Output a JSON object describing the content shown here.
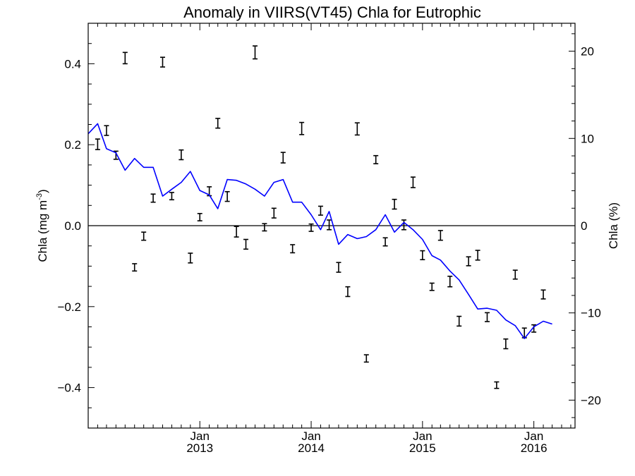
{
  "chart_data": {
    "type": "line",
    "title": "Anomaly in VIIRS(VT45) Chla for Eutrophic",
    "ylabel_left": "Chla (mg m",
    "ylabel_left_sup": "-3",
    "ylabel_left_close": ")",
    "ylabel_right": "Chla (%)",
    "ylim_left": [
      -0.5,
      0.5
    ],
    "ylim_right": [
      -23.2,
      23.2
    ],
    "xlim": [
      "2012-01-01",
      "2016-05-15"
    ],
    "grid": false,
    "zero_line": 0,
    "left_ticks": [
      {
        "value": 0.4,
        "label": "0.4"
      },
      {
        "value": 0.2,
        "label": "0.2"
      },
      {
        "value": 0.0,
        "label": "0.0"
      },
      {
        "value": -0.2,
        "label": "−0.2"
      },
      {
        "value": -0.4,
        "label": "−0.4"
      }
    ],
    "right_ticks": [
      {
        "value": 20,
        "label": "20"
      },
      {
        "value": 10,
        "label": "10"
      },
      {
        "value": 0,
        "label": "0"
      },
      {
        "value": -10,
        "label": "−10"
      },
      {
        "value": -20,
        "label": "−20"
      }
    ],
    "x_ticks": [
      {
        "date": "2013-01-01",
        "month": "Jan",
        "year": "2013"
      },
      {
        "date": "2014-01-01",
        "month": "Jan",
        "year": "2014"
      },
      {
        "date": "2015-01-01",
        "month": "Jan",
        "year": "2015"
      },
      {
        "date": "2016-01-01",
        "month": "Jan",
        "year": "2016"
      }
    ],
    "errorbars": {
      "color": "#000000",
      "points": [
        {
          "date": "2012-02-01",
          "y": 0.201,
          "err": 0.013
        },
        {
          "date": "2012-03-01",
          "y": 0.235,
          "err": 0.012
        },
        {
          "date": "2012-04-01",
          "y": 0.174,
          "err": 0.01
        },
        {
          "date": "2012-05-01",
          "y": 0.414,
          "err": 0.014
        },
        {
          "date": "2012-06-01",
          "y": -0.103,
          "err": 0.009
        },
        {
          "date": "2012-07-01",
          "y": -0.026,
          "err": 0.01
        },
        {
          "date": "2012-08-01",
          "y": 0.068,
          "err": 0.01
        },
        {
          "date": "2012-09-01",
          "y": 0.404,
          "err": 0.012
        },
        {
          "date": "2012-10-01",
          "y": 0.073,
          "err": 0.009
        },
        {
          "date": "2012-11-01",
          "y": 0.175,
          "err": 0.012
        },
        {
          "date": "2012-12-01",
          "y": -0.08,
          "err": 0.012
        },
        {
          "date": "2013-01-01",
          "y": 0.021,
          "err": 0.009
        },
        {
          "date": "2013-02-01",
          "y": 0.085,
          "err": 0.011
        },
        {
          "date": "2013-03-01",
          "y": 0.253,
          "err": 0.012
        },
        {
          "date": "2013-04-01",
          "y": 0.072,
          "err": 0.012
        },
        {
          "date": "2013-05-01",
          "y": -0.015,
          "err": 0.013
        },
        {
          "date": "2013-06-01",
          "y": -0.046,
          "err": 0.012
        },
        {
          "date": "2013-07-01",
          "y": 0.428,
          "err": 0.016
        },
        {
          "date": "2013-08-01",
          "y": -0.004,
          "err": 0.009
        },
        {
          "date": "2013-09-01",
          "y": 0.031,
          "err": 0.012
        },
        {
          "date": "2013-10-01",
          "y": 0.168,
          "err": 0.013
        },
        {
          "date": "2013-11-01",
          "y": -0.057,
          "err": 0.01
        },
        {
          "date": "2013-12-01",
          "y": 0.24,
          "err": 0.015
        },
        {
          "date": "2014-01-01",
          "y": -0.005,
          "err": 0.009
        },
        {
          "date": "2014-02-01",
          "y": 0.037,
          "err": 0.011
        },
        {
          "date": "2014-03-01",
          "y": 0.002,
          "err": 0.012
        },
        {
          "date": "2014-04-01",
          "y": -0.103,
          "err": 0.012
        },
        {
          "date": "2014-05-01",
          "y": -0.163,
          "err": 0.012
        },
        {
          "date": "2014-06-01",
          "y": 0.239,
          "err": 0.015
        },
        {
          "date": "2014-07-01",
          "y": -0.328,
          "err": 0.009
        },
        {
          "date": "2014-08-01",
          "y": 0.163,
          "err": 0.01
        },
        {
          "date": "2014-09-01",
          "y": -0.04,
          "err": 0.01
        },
        {
          "date": "2014-10-01",
          "y": 0.053,
          "err": 0.012
        },
        {
          "date": "2014-11-01",
          "y": 0.002,
          "err": 0.012
        },
        {
          "date": "2014-12-01",
          "y": 0.107,
          "err": 0.013
        },
        {
          "date": "2015-01-01",
          "y": -0.073,
          "err": 0.011
        },
        {
          "date": "2015-02-01",
          "y": -0.151,
          "err": 0.009
        },
        {
          "date": "2015-03-01",
          "y": -0.024,
          "err": 0.012
        },
        {
          "date": "2015-04-01",
          "y": -0.138,
          "err": 0.013
        },
        {
          "date": "2015-05-01",
          "y": -0.236,
          "err": 0.012
        },
        {
          "date": "2015-06-01",
          "y": -0.088,
          "err": 0.011
        },
        {
          "date": "2015-07-01",
          "y": -0.073,
          "err": 0.012
        },
        {
          "date": "2015-08-01",
          "y": -0.226,
          "err": 0.011
        },
        {
          "date": "2015-09-01",
          "y": -0.394,
          "err": 0.008
        },
        {
          "date": "2015-10-01",
          "y": -0.292,
          "err": 0.012
        },
        {
          "date": "2015-11-01",
          "y": -0.121,
          "err": 0.011
        },
        {
          "date": "2015-12-01",
          "y": -0.265,
          "err": 0.012
        },
        {
          "date": "2016-01-01",
          "y": -0.254,
          "err": 0.009
        },
        {
          "date": "2016-02-01",
          "y": -0.17,
          "err": 0.011
        }
      ]
    },
    "series": [
      {
        "color": "#0000ff",
        "points": [
          {
            "date": "2012-01-01",
            "y": 0.227
          },
          {
            "date": "2012-02-01",
            "y": 0.252
          },
          {
            "date": "2012-03-01",
            "y": 0.19
          },
          {
            "date": "2012-04-01",
            "y": 0.18
          },
          {
            "date": "2012-05-01",
            "y": 0.137
          },
          {
            "date": "2012-06-01",
            "y": 0.166
          },
          {
            "date": "2012-07-01",
            "y": 0.144
          },
          {
            "date": "2012-08-01",
            "y": 0.144
          },
          {
            "date": "2012-09-01",
            "y": 0.073
          },
          {
            "date": "2012-10-01",
            "y": 0.09
          },
          {
            "date": "2012-11-01",
            "y": 0.107
          },
          {
            "date": "2012-12-01",
            "y": 0.134
          },
          {
            "date": "2013-01-01",
            "y": 0.087
          },
          {
            "date": "2013-02-01",
            "y": 0.076
          },
          {
            "date": "2013-03-01",
            "y": 0.042
          },
          {
            "date": "2013-04-01",
            "y": 0.114
          },
          {
            "date": "2013-05-01",
            "y": 0.112
          },
          {
            "date": "2013-06-01",
            "y": 0.103
          },
          {
            "date": "2013-07-01",
            "y": 0.09
          },
          {
            "date": "2013-08-01",
            "y": 0.073
          },
          {
            "date": "2013-09-01",
            "y": 0.107
          },
          {
            "date": "2013-10-01",
            "y": 0.114
          },
          {
            "date": "2013-11-01",
            "y": 0.058
          },
          {
            "date": "2013-12-01",
            "y": 0.058
          },
          {
            "date": "2014-01-01",
            "y": 0.027
          },
          {
            "date": "2014-02-01",
            "y": -0.01
          },
          {
            "date": "2014-03-01",
            "y": 0.035
          },
          {
            "date": "2014-04-01",
            "y": -0.046
          },
          {
            "date": "2014-05-01",
            "y": -0.022
          },
          {
            "date": "2014-06-01",
            "y": -0.032
          },
          {
            "date": "2014-07-01",
            "y": -0.027
          },
          {
            "date": "2014-08-01",
            "y": -0.01
          },
          {
            "date": "2014-09-01",
            "y": 0.027
          },
          {
            "date": "2014-10-01",
            "y": -0.016
          },
          {
            "date": "2014-11-01",
            "y": 0.008
          },
          {
            "date": "2014-12-01",
            "y": -0.01
          },
          {
            "date": "2015-01-01",
            "y": -0.034
          },
          {
            "date": "2015-02-01",
            "y": -0.074
          },
          {
            "date": "2015-03-01",
            "y": -0.085
          },
          {
            "date": "2015-04-01",
            "y": -0.112
          },
          {
            "date": "2015-05-01",
            "y": -0.134
          },
          {
            "date": "2015-06-01",
            "y": -0.17
          },
          {
            "date": "2015-07-01",
            "y": -0.206
          },
          {
            "date": "2015-08-01",
            "y": -0.204
          },
          {
            "date": "2015-09-01",
            "y": -0.209
          },
          {
            "date": "2015-10-01",
            "y": -0.233
          },
          {
            "date": "2015-11-01",
            "y": -0.247
          },
          {
            "date": "2015-12-01",
            "y": -0.279
          },
          {
            "date": "2016-01-01",
            "y": -0.25
          },
          {
            "date": "2016-02-01",
            "y": -0.236
          },
          {
            "date": "2016-03-01",
            "y": -0.243
          }
        ]
      }
    ]
  }
}
